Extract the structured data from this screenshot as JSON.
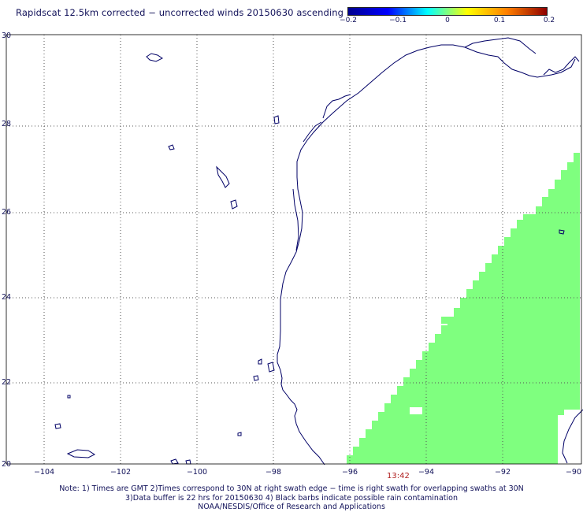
{
  "title": "Rapidscat 12.5km corrected − uncorrected winds 20150630 ascending",
  "colorbar": {
    "ticks": [
      "−0.2",
      "−0.1",
      "0",
      "0.1",
      "0.2"
    ],
    "range": [
      -0.2,
      0.2
    ],
    "colors": [
      "#00008f",
      "#0000ff",
      "#00ffff",
      "#ffff00",
      "#ff7f00",
      "#8f0000"
    ]
  },
  "map": {
    "lon_range": [
      -105,
      -90
    ],
    "lat_range": [
      20,
      30
    ],
    "x_ticks": [
      "−104",
      "−102",
      "−100",
      "−98",
      "−96",
      "−94",
      "−92",
      "−90"
    ],
    "y_ticks": [
      "20",
      "22",
      "24",
      "26",
      "28",
      "30"
    ],
    "grid": true,
    "coastline_color": "#000066",
    "swath_color": "#7fff7f",
    "swath_value": 0
  },
  "swath_time": "13:42",
  "notes": [
    "Note: 1) Times are GMT 2)Times correspond to 30N at right swath edge − time is right swath for overlapping swaths at 30N",
    "3)Data buffer is 22 hrs for 20150630 4) Black barbs indicate possible rain contamination",
    "NOAA/NESDIS/Office of Research and Applications"
  ]
}
